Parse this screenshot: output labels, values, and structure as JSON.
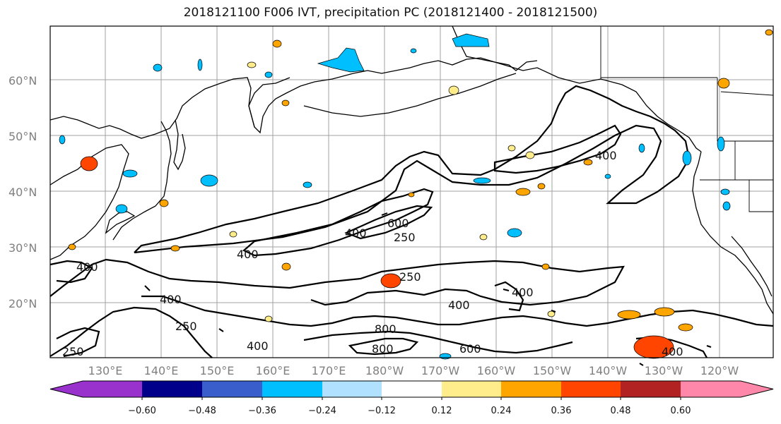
{
  "title": "2018121100 F006 IVT, precipitation PC (2018121400 - 2018121500)",
  "lat_labels": [
    "60°N",
    "50°N",
    "40°N",
    "30°N",
    "20°N"
  ],
  "lon_labels": [
    "130°E",
    "140°E",
    "150°E",
    "160°E",
    "170°E",
    "180°W",
    "170°W",
    "160°W",
    "150°W",
    "140°W",
    "130°W",
    "120°W"
  ],
  "colorbar": {
    "colors": [
      "#9932cc",
      "#00008b",
      "#3a5fcd",
      "#00bfff",
      "#b0e2ff",
      "#ffffff",
      "#ffec8b",
      "#ffa500",
      "#ff4500",
      "#b22222",
      "#ff88aa"
    ],
    "tick_labels": [
      "−0.60",
      "−0.48",
      "−0.36",
      "−0.24",
      "−0.12",
      "0.12",
      "0.24",
      "0.36",
      "0.48",
      "0.60"
    ]
  },
  "contour_labels": [
    "400",
    "600",
    "250",
    "400",
    "400",
    "250",
    "400",
    "250",
    "400",
    "400",
    "800",
    "800",
    "600",
    "400",
    "400",
    "250",
    "400"
  ],
  "colors": {
    "contour": "#000000",
    "grid": "#a0a0a0",
    "coast": "#000000"
  }
}
